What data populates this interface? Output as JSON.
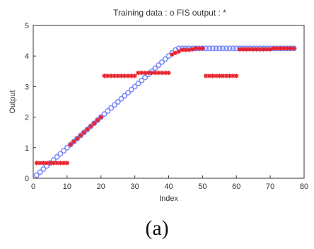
{
  "chart_data": {
    "type": "scatter",
    "title": "Training data : o   FIS output : *",
    "xlabel": "Index",
    "ylabel": "Output",
    "xlim": [
      0,
      80
    ],
    "ylim": [
      0,
      5
    ],
    "xticks": [
      0,
      10,
      20,
      30,
      40,
      50,
      60,
      70,
      80
    ],
    "yticks": [
      0,
      1,
      2,
      3,
      4,
      5
    ],
    "grid": false,
    "series": [
      {
        "marker": "o",
        "color": "#6b7cff",
        "x": [
          1,
          2,
          3,
          4,
          5,
          6,
          7,
          8,
          9,
          10,
          11,
          12,
          13,
          14,
          15,
          16,
          17,
          18,
          19,
          20,
          21,
          22,
          23,
          24,
          25,
          26,
          27,
          28,
          29,
          30,
          31,
          32,
          33,
          34,
          35,
          36,
          37,
          38,
          39,
          40,
          41,
          42,
          43,
          44,
          45,
          46,
          47,
          48,
          49,
          50,
          51,
          52,
          53,
          54,
          55,
          56,
          57,
          58,
          59,
          60,
          61,
          62,
          63,
          64,
          65,
          66,
          67,
          68,
          69,
          70,
          71,
          72,
          73,
          74,
          75,
          76,
          77
        ],
        "y": [
          0.1,
          0.2,
          0.3,
          0.4,
          0.5,
          0.6,
          0.7,
          0.8,
          0.9,
          1.0,
          1.1,
          1.2,
          1.3,
          1.4,
          1.5,
          1.6,
          1.7,
          1.8,
          1.9,
          2.0,
          2.1,
          2.2,
          2.3,
          2.4,
          2.5,
          2.6,
          2.7,
          2.8,
          2.9,
          3.0,
          3.1,
          3.2,
          3.3,
          3.4,
          3.5,
          3.6,
          3.7,
          3.8,
          3.9,
          4.0,
          4.1,
          4.2,
          4.25,
          4.25,
          4.25,
          4.25,
          4.25,
          4.25,
          4.25,
          4.25,
          4.25,
          4.25,
          4.25,
          4.25,
          4.25,
          4.25,
          4.25,
          4.25,
          4.25,
          4.25,
          4.25,
          4.25,
          4.25,
          4.25,
          4.25,
          4.25,
          4.25,
          4.25,
          4.25,
          4.25,
          4.25,
          4.25,
          4.25,
          4.25,
          4.25,
          4.25,
          4.25
        ]
      },
      {
        "marker": "*",
        "color": "#e8202a",
        "x": [
          1,
          2,
          3,
          4,
          5,
          6,
          7,
          8,
          9,
          10,
          11,
          12,
          13,
          14,
          15,
          16,
          17,
          18,
          19,
          20,
          21,
          22,
          23,
          24,
          25,
          26,
          27,
          28,
          29,
          30,
          31,
          32,
          33,
          34,
          35,
          36,
          37,
          38,
          39,
          40,
          41,
          42,
          43,
          44,
          45,
          46,
          47,
          48,
          49,
          50,
          51,
          52,
          53,
          54,
          55,
          56,
          57,
          58,
          59,
          60,
          61,
          62,
          63,
          64,
          65,
          66,
          67,
          68,
          69,
          70,
          71,
          72,
          73,
          74,
          75,
          76,
          77
        ],
        "y": [
          0.5,
          0.5,
          0.5,
          0.5,
          0.5,
          0.5,
          0.5,
          0.5,
          0.5,
          0.5,
          1.1,
          1.2,
          1.3,
          1.4,
          1.5,
          1.6,
          1.7,
          1.8,
          1.9,
          2.0,
          3.35,
          3.35,
          3.35,
          3.35,
          3.35,
          3.35,
          3.35,
          3.35,
          3.35,
          3.35,
          3.45,
          3.45,
          3.45,
          3.45,
          3.45,
          3.45,
          3.45,
          3.45,
          3.45,
          3.45,
          4.05,
          4.1,
          4.15,
          4.2,
          4.2,
          4.2,
          4.22,
          4.25,
          4.25,
          4.25,
          3.35,
          3.35,
          3.35,
          3.35,
          3.35,
          3.35,
          3.35,
          3.35,
          3.35,
          3.35,
          4.22,
          4.22,
          4.22,
          4.22,
          4.22,
          4.22,
          4.22,
          4.22,
          4.22,
          4.22,
          4.25,
          4.25,
          4.25,
          4.25,
          4.25,
          4.25,
          4.25
        ]
      }
    ]
  },
  "caption": "(a)"
}
